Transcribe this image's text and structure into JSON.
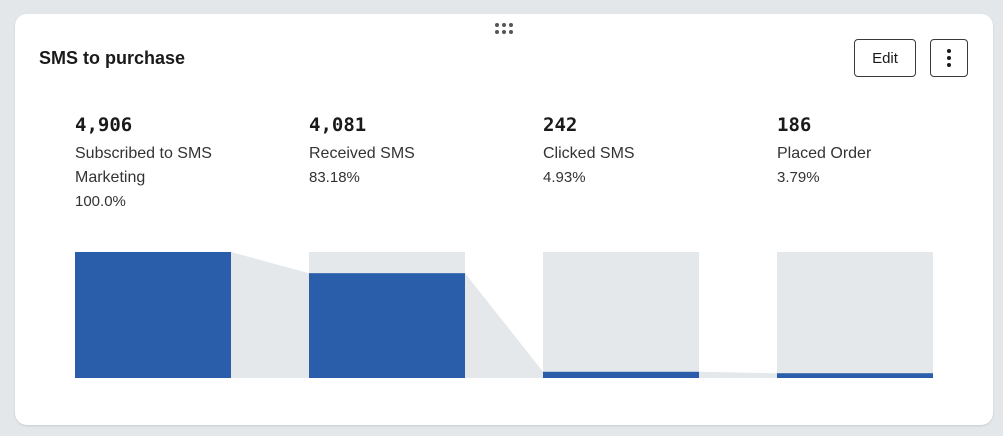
{
  "card": {
    "title": "SMS to purchase",
    "edit_label": "Edit",
    "drag_icon": "drag-handle-icon",
    "more_icon": "vertical-ellipsis-icon"
  },
  "colors": {
    "bar": "#2a5eab",
    "track": "#e5e8ea"
  },
  "chart_data": {
    "type": "bar",
    "subtype": "funnel",
    "categories": [
      "Subscribed to SMS Marketing",
      "Received SMS",
      "Clicked SMS",
      "Placed Order"
    ],
    "values": [
      4906,
      4081,
      242,
      186
    ],
    "value_labels": [
      "4,906",
      "4,081",
      "242",
      "186"
    ],
    "percent_labels": [
      "100.0%",
      "83.18%",
      "4.93%",
      "3.79%"
    ],
    "ylim": [
      0,
      4906
    ],
    "grid": false
  }
}
